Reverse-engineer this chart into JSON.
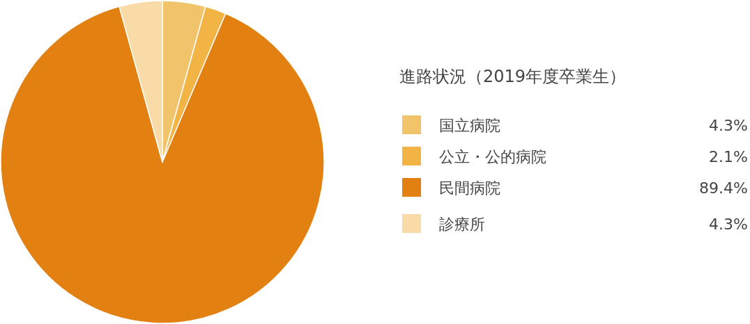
{
  "chart_data": {
    "type": "pie",
    "legend_title": "進路状況（2019年度卒業生）",
    "categories": [
      "国立病院",
      "公立・公的病院",
      "民間病院",
      "診療所"
    ],
    "values": [
      4.3,
      2.1,
      89.4,
      4.3
    ],
    "value_labels": [
      "4.3%",
      "2.1%",
      "89.4%",
      "4.3%"
    ],
    "colors": [
      "#f1c46c",
      "#f2b444",
      "#e38012",
      "#f8dba6"
    ],
    "legend": "right"
  }
}
